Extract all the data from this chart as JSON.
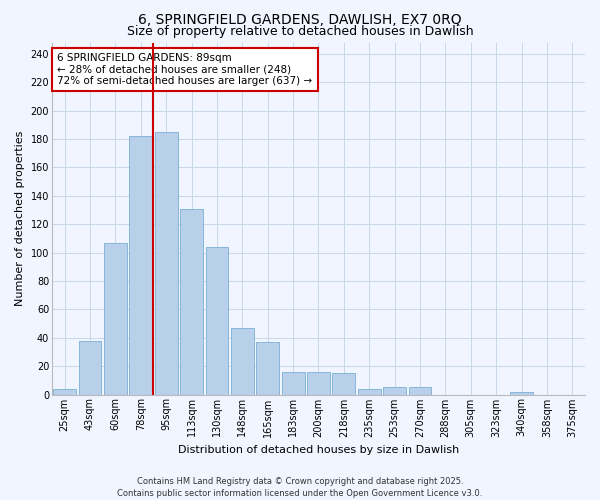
{
  "title": "6, SPRINGFIELD GARDENS, DAWLISH, EX7 0RQ",
  "subtitle": "Size of property relative to detached houses in Dawlish",
  "xlabel": "Distribution of detached houses by size in Dawlish",
  "ylabel": "Number of detached properties",
  "bar_labels": [
    "25sqm",
    "43sqm",
    "60sqm",
    "78sqm",
    "95sqm",
    "113sqm",
    "130sqm",
    "148sqm",
    "165sqm",
    "183sqm",
    "200sqm",
    "218sqm",
    "235sqm",
    "253sqm",
    "270sqm",
    "288sqm",
    "305sqm",
    "323sqm",
    "340sqm",
    "358sqm",
    "375sqm"
  ],
  "bar_values": [
    4,
    38,
    107,
    182,
    185,
    131,
    104,
    47,
    37,
    16,
    16,
    15,
    4,
    5,
    5,
    0,
    0,
    0,
    2,
    0,
    0
  ],
  "bar_color": "#b8d0ea",
  "bar_edge_color": "#7bafd4",
  "grid_color": "#c8d8e8",
  "vline_x": 3.5,
  "vline_color": "#cc0000",
  "annotation_text": "6 SPRINGFIELD GARDENS: 89sqm\n← 28% of detached houses are smaller (248)\n72% of semi-detached houses are larger (637) →",
  "annotation_box_edgecolor": "#cc0000",
  "annotation_box_facecolor": "#ffffff",
  "ylim": [
    0,
    248
  ],
  "yticks": [
    0,
    20,
    40,
    60,
    80,
    100,
    120,
    140,
    160,
    180,
    200,
    220,
    240
  ],
  "footer_line1": "Contains HM Land Registry data © Crown copyright and database right 2025.",
  "footer_line2": "Contains public sector information licensed under the Open Government Licence v3.0.",
  "bg_color": "#f0f5ff",
  "title_fontsize": 10,
  "subtitle_fontsize": 9,
  "axis_label_fontsize": 8,
  "tick_fontsize": 7,
  "annotation_fontsize": 7.5,
  "footer_fontsize": 6
}
